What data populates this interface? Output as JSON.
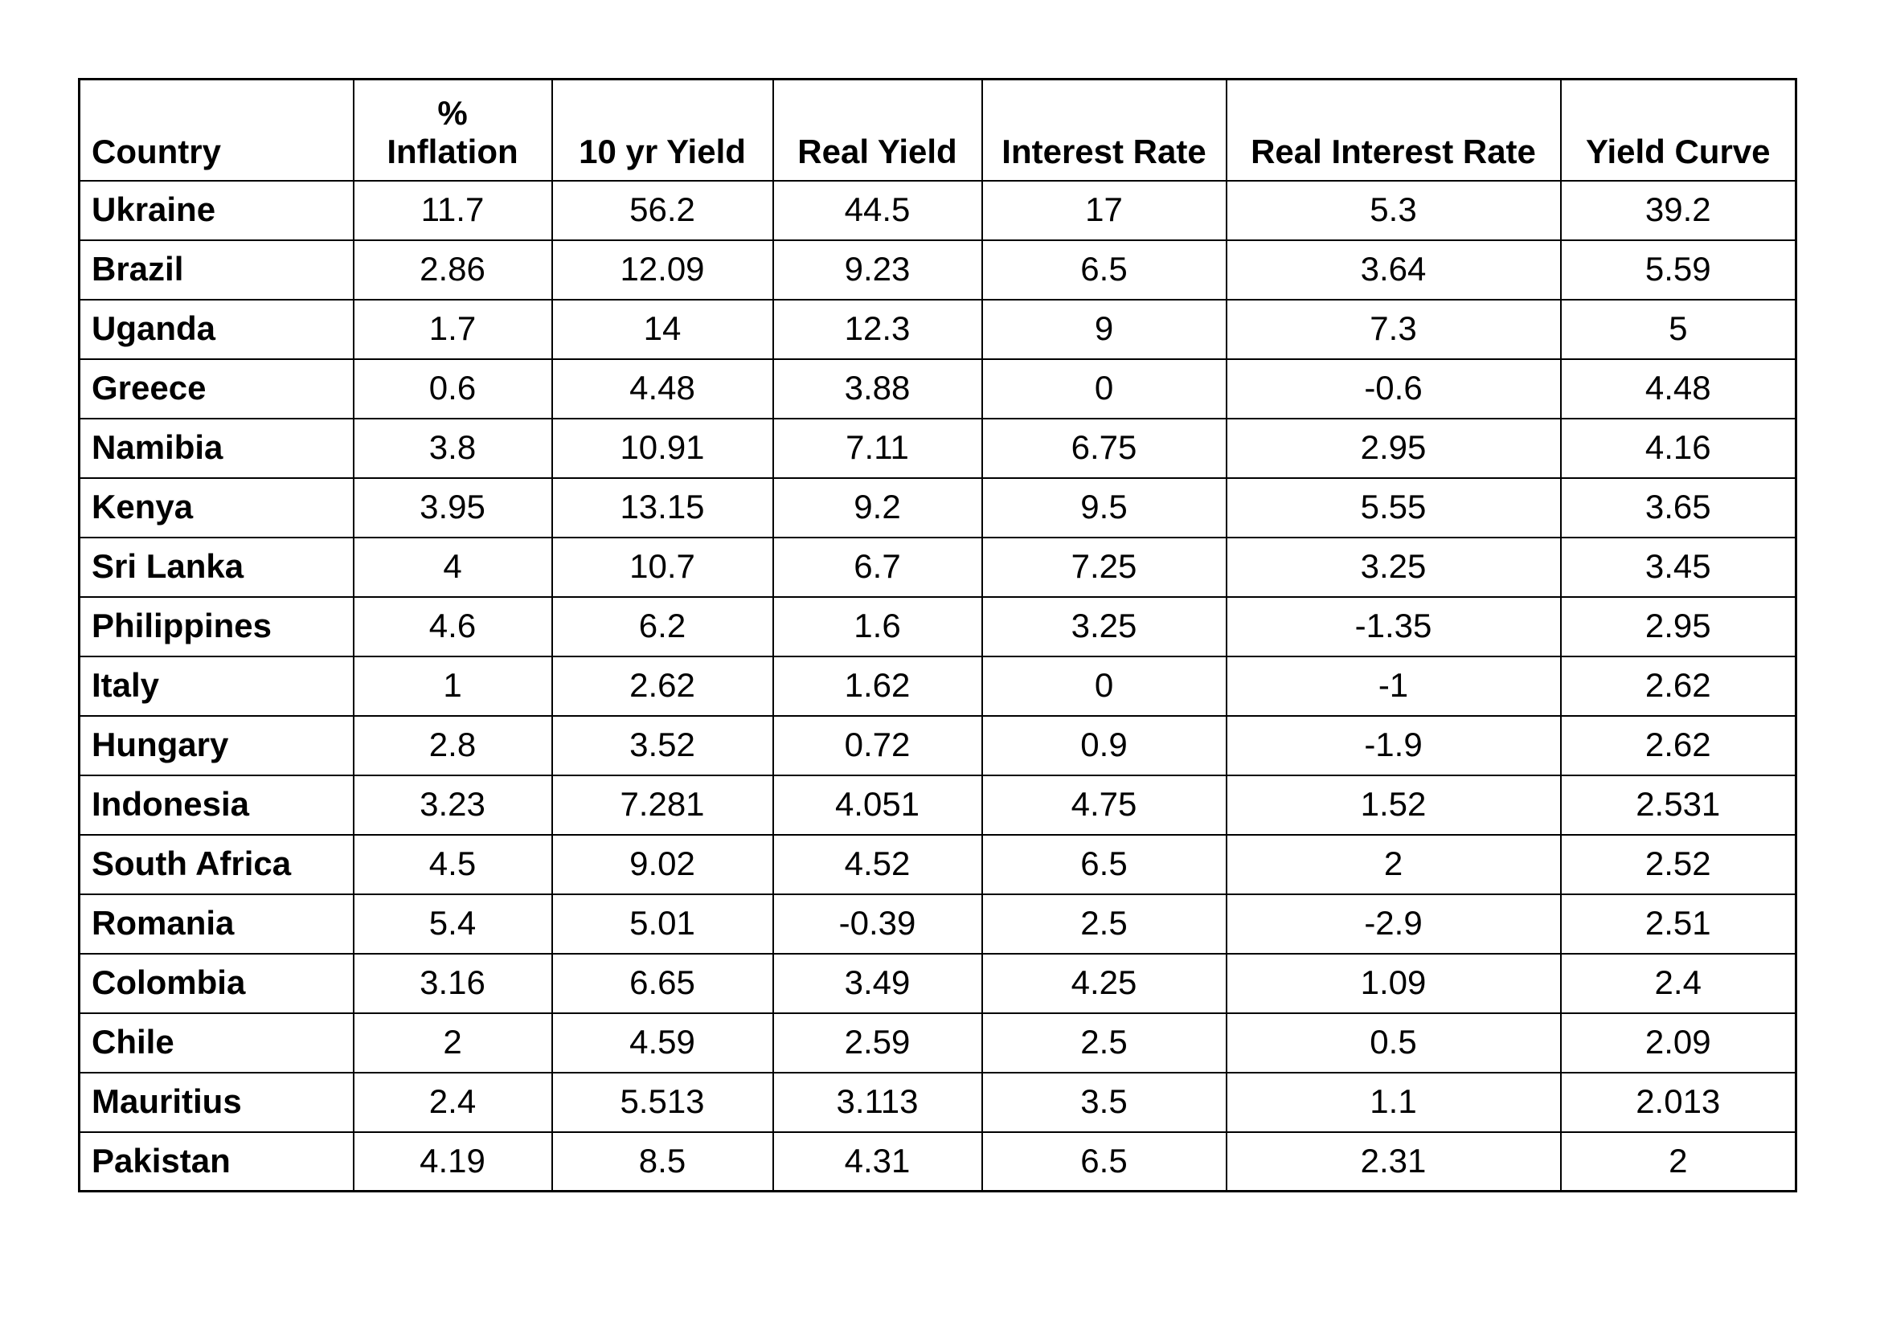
{
  "page": {
    "background": "#ffffff",
    "text_color": "#000000",
    "border_color": "#000000"
  },
  "chart_data": {
    "type": "table",
    "title": "",
    "headers": [
      "Country",
      "%\nInflation",
      "10 yr Yield",
      "Real Yield",
      "Interest Rate",
      "Real Interest Rate",
      "Yield Curve"
    ],
    "rows": [
      [
        "Ukraine",
        "11.7",
        "56.2",
        "44.5",
        "17",
        "5.3",
        "39.2"
      ],
      [
        "Brazil",
        "2.86",
        "12.09",
        "9.23",
        "6.5",
        "3.64",
        "5.59"
      ],
      [
        "Uganda",
        "1.7",
        "14",
        "12.3",
        "9",
        "7.3",
        "5"
      ],
      [
        "Greece",
        "0.6",
        "4.48",
        "3.88",
        "0",
        "-0.6",
        "4.48"
      ],
      [
        "Namibia",
        "3.8",
        "10.91",
        "7.11",
        "6.75",
        "2.95",
        "4.16"
      ],
      [
        "Kenya",
        "3.95",
        "13.15",
        "9.2",
        "9.5",
        "5.55",
        "3.65"
      ],
      [
        "Sri Lanka",
        "4",
        "10.7",
        "6.7",
        "7.25",
        "3.25",
        "3.45"
      ],
      [
        "Philippines",
        "4.6",
        "6.2",
        "1.6",
        "3.25",
        "-1.35",
        "2.95"
      ],
      [
        "Italy",
        "1",
        "2.62",
        "1.62",
        "0",
        "-1",
        "2.62"
      ],
      [
        "Hungary",
        "2.8",
        "3.52",
        "0.72",
        "0.9",
        "-1.9",
        "2.62"
      ],
      [
        "Indonesia",
        "3.23",
        "7.281",
        "4.051",
        "4.75",
        "1.52",
        "2.531"
      ],
      [
        "South Africa",
        "4.5",
        "9.02",
        "4.52",
        "6.5",
        "2",
        "2.52"
      ],
      [
        "Romania",
        "5.4",
        "5.01",
        "-0.39",
        "2.5",
        "-2.9",
        "2.51"
      ],
      [
        "Colombia",
        "3.16",
        "6.65",
        "3.49",
        "4.25",
        "1.09",
        "2.4"
      ],
      [
        "Chile",
        "2",
        "4.59",
        "2.59",
        "2.5",
        "0.5",
        "2.09"
      ],
      [
        "Mauritius",
        "2.4",
        "5.513",
        "3.113",
        "3.5",
        "1.1",
        "2.013"
      ],
      [
        "Pakistan",
        "4.19",
        "8.5",
        "4.31",
        "6.5",
        "2.31",
        "2"
      ]
    ]
  }
}
